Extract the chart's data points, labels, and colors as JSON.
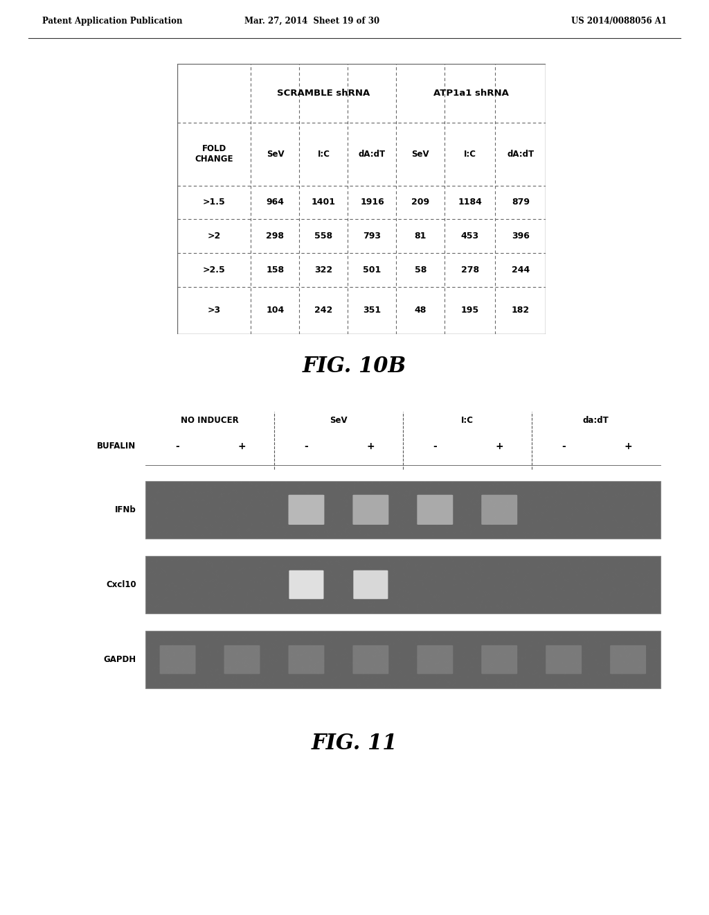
{
  "header_left": "Patent Application Publication",
  "header_mid": "Mar. 27, 2014  Sheet 19 of 30",
  "header_right": "US 2014/0088056 A1",
  "fig10b_label": "FIG. 10B",
  "fig11_label": "FIG. 11",
  "table": {
    "col_headers_sub": [
      "FOLD\nCHANGE",
      "SeV",
      "I:C",
      "dA:dT",
      "SeV",
      "I:C",
      "dA:dT"
    ],
    "rows": [
      [
        ">1.5",
        "964",
        "1401",
        "1916",
        "209",
        "1184",
        "879"
      ],
      [
        ">2",
        "298",
        "558",
        "793",
        "81",
        "453",
        "396"
      ],
      [
        ">2.5",
        "158",
        "322",
        "501",
        "58",
        "278",
        "244"
      ],
      [
        ">3",
        "104",
        "242",
        "351",
        "48",
        "195",
        "182"
      ]
    ]
  },
  "gel": {
    "lane_labels": [
      "-",
      "+",
      "-",
      "+",
      "-",
      "+",
      "-",
      "+"
    ],
    "group_labels": [
      "NO INDUCER",
      "SeV",
      "I:C",
      "da:dT"
    ],
    "row_labels_top_to_bottom": [
      "IFNb",
      "Cxcl10",
      "GAPDH"
    ],
    "bufalin_label": "BUFALIN",
    "bg_color": "#636363",
    "bg_color_dark": "#4a4a4a",
    "ifnb_bands": [
      0,
      0,
      1,
      1,
      1,
      1,
      0,
      0
    ],
    "cxcl10_bands": [
      0,
      0,
      1,
      1,
      0,
      0,
      0,
      0
    ],
    "gapdh_bands": [
      1,
      1,
      1,
      1,
      1,
      1,
      1,
      1
    ],
    "ifnb_colors": [
      "#aaaaaa",
      "#999999",
      "#b8b8b8",
      "#aaaaaa",
      "#aaaaaa",
      "#999999",
      "#aaaaaa",
      "#aaaaaa"
    ],
    "cxcl10_colors": [
      "#c8c8c8",
      "#c8c8c8",
      "#e0e0e0",
      "#d8d8d8",
      "#c8c8c8",
      "#c8c8c8",
      "#c8c8c8",
      "#c8c8c8"
    ],
    "gapdh_colors": [
      "#7a7a7a",
      "#7a7a7a",
      "#7a7a7a",
      "#7a7a7a",
      "#7a7a7a",
      "#7a7a7a",
      "#7a7a7a",
      "#7a7a7a"
    ]
  },
  "background_color": "#ffffff",
  "text_color": "#000000",
  "border_color": "#666666"
}
